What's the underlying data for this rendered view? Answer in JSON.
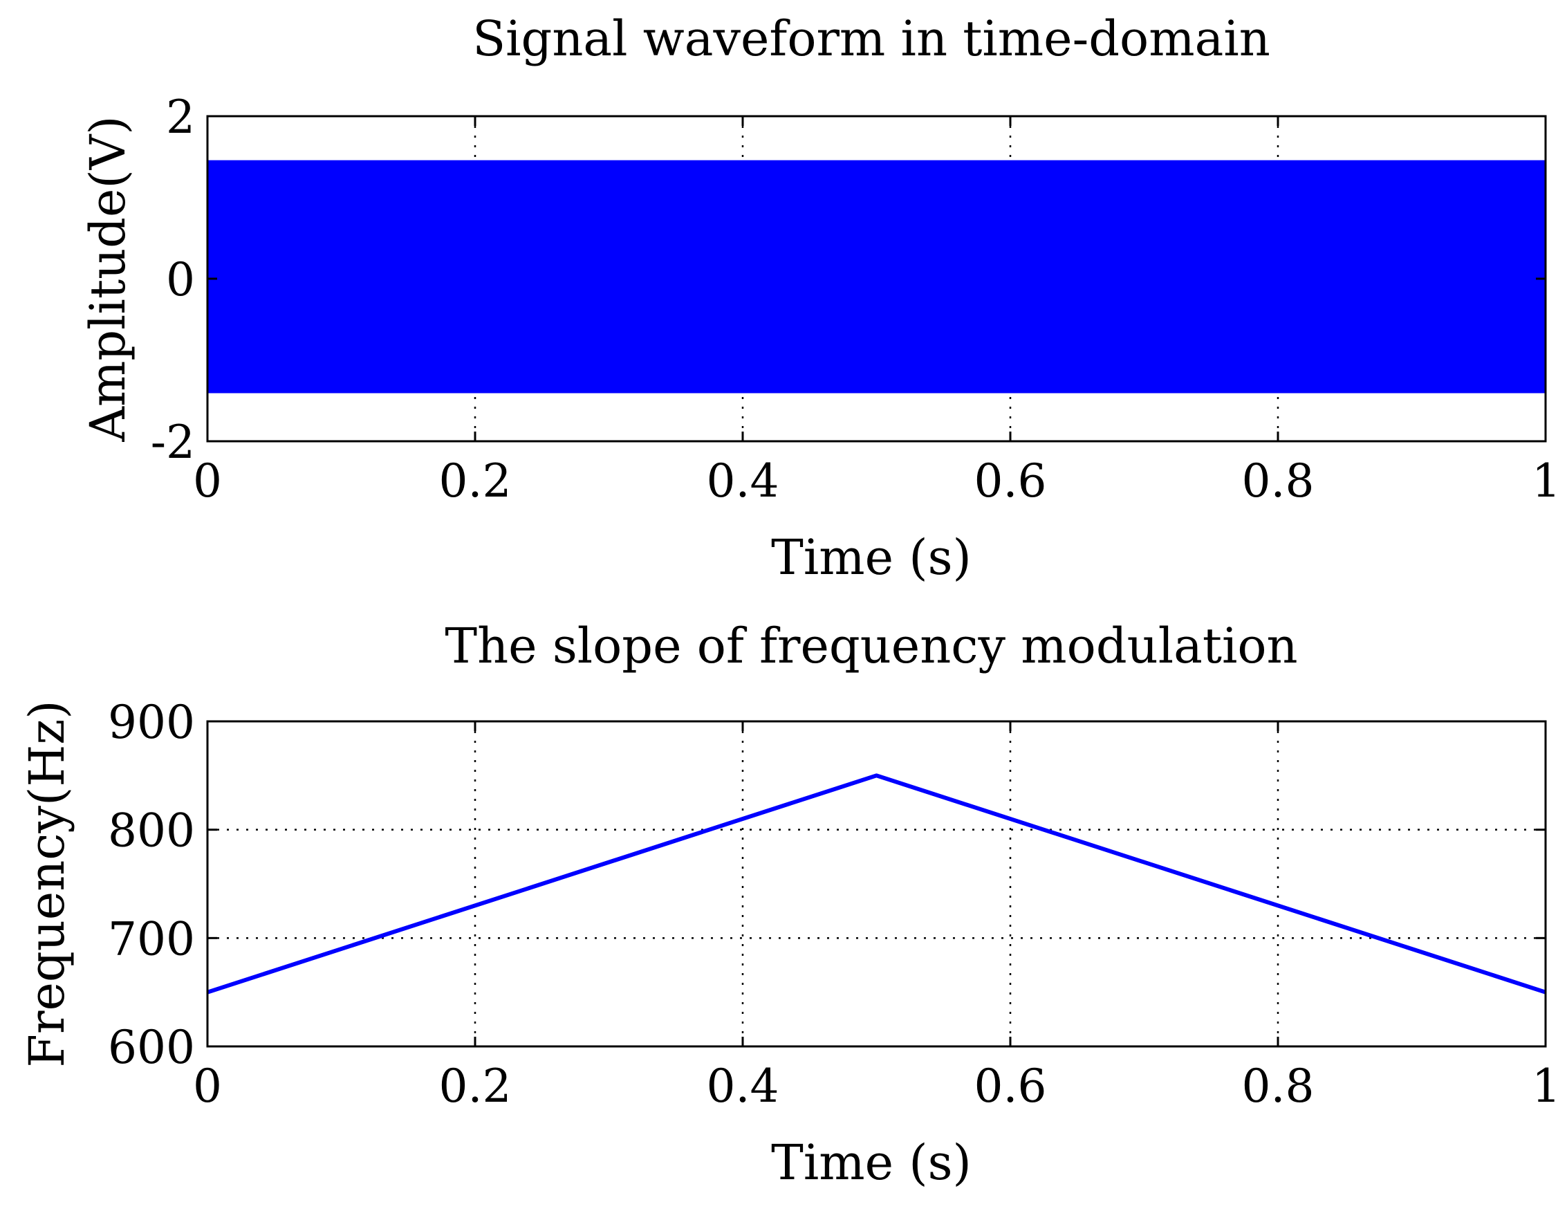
{
  "chart_data": [
    {
      "type": "line",
      "title": "Signal waveform in time-domain",
      "xlabel": "Time (s)",
      "ylabel": "Amplitude(V)",
      "xlim": [
        0,
        1
      ],
      "ylim": [
        -2,
        2
      ],
      "x_ticks": [
        0,
        0.2,
        0.4,
        0.6,
        0.8,
        1
      ],
      "x_tick_labels": [
        "0",
        "0.2",
        "0.4",
        "0.6",
        "0.8",
        "1"
      ],
      "y_ticks": [
        -2,
        0,
        2
      ],
      "y_tick_labels": [
        "-2",
        "0",
        "2"
      ],
      "grid": true,
      "series": [
        {
          "color": "#0000ff",
          "envelope": {
            "x": [
              0,
              1
            ],
            "upper": [
              1.45,
              1.45
            ],
            "lower": [
              -1.4,
              -1.4
            ]
          }
        }
      ]
    },
    {
      "type": "line",
      "title": "The slope of frequency modulation",
      "xlabel": "Time (s)",
      "ylabel": "Frequency(Hz)",
      "xlim": [
        0,
        1
      ],
      "ylim": [
        600,
        900
      ],
      "x_ticks": [
        0,
        0.2,
        0.4,
        0.6,
        0.8,
        1
      ],
      "x_tick_labels": [
        "0",
        "0.2",
        "0.4",
        "0.6",
        "0.8",
        "1"
      ],
      "y_ticks": [
        600,
        700,
        800,
        900
      ],
      "y_tick_labels": [
        "600",
        "700",
        "800",
        "900"
      ],
      "grid": true,
      "series": [
        {
          "color": "#0000ff",
          "x": [
            0,
            0.5,
            1
          ],
          "y": [
            650,
            850,
            650
          ]
        }
      ]
    }
  ]
}
